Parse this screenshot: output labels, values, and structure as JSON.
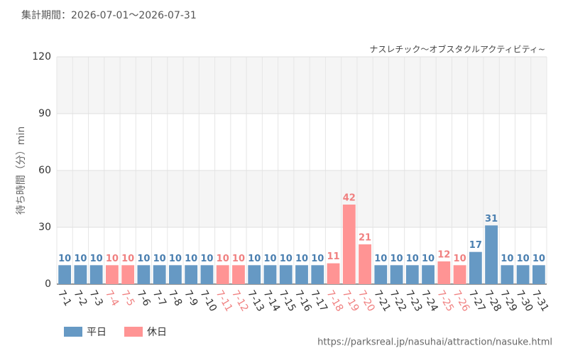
{
  "chart_data": {
    "type": "bar",
    "title": "集計期間：2026-07-01～2026-07-31",
    "subtitle": "ナスレチック～オブスタクルアクティビティ~",
    "y_label": "待ち時間（分）min",
    "source": "https://parksreal.jp/nasuhai/attraction/nasuke.html",
    "categories": [
      "7-1",
      "7-2",
      "7-3",
      "7-4",
      "7-5",
      "7-6",
      "7-7",
      "7-8",
      "7-9",
      "7-10",
      "7-11",
      "7-12",
      "7-13",
      "7-14",
      "7-15",
      "7-16",
      "7-17",
      "7-18",
      "7-19",
      "7-20",
      "7-21",
      "7-22",
      "7-23",
      "7-24",
      "7-25",
      "7-26",
      "7-27",
      "7-28",
      "7-29",
      "7-30",
      "7-31"
    ],
    "series": [
      {
        "name": "平日",
        "color": "#6699c4",
        "values": [
          10,
          10,
          10,
          null,
          null,
          10,
          10,
          10,
          10,
          10,
          null,
          null,
          10,
          10,
          10,
          10,
          10,
          null,
          null,
          null,
          10,
          10,
          10,
          10,
          null,
          null,
          17,
          31,
          10,
          10,
          10
        ]
      },
      {
        "name": "休日",
        "color": "#ff9494",
        "values": [
          null,
          null,
          null,
          10,
          10,
          null,
          null,
          null,
          null,
          null,
          10,
          10,
          null,
          null,
          null,
          null,
          null,
          11,
          42,
          21,
          null,
          null,
          null,
          null,
          12,
          10,
          null,
          null,
          null,
          null,
          null
        ]
      }
    ],
    "ylim": [
      0,
      120
    ],
    "yticks": [
      0,
      30,
      60,
      90,
      120
    ],
    "grid": true,
    "legend": "bottom-left"
  }
}
